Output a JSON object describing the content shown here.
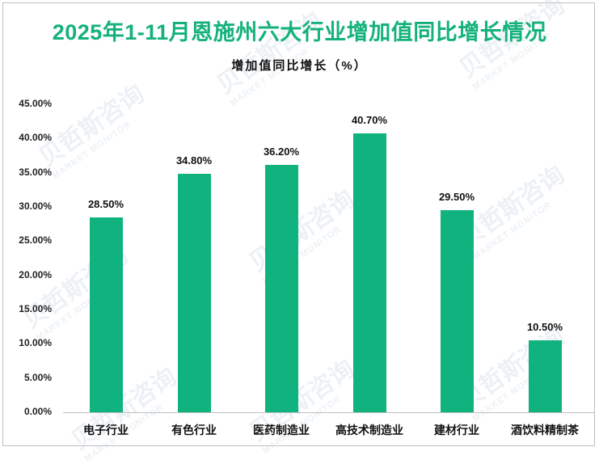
{
  "title": "2025年1-11月恩施州六大行业增加值同比增长情况",
  "subtitle": "增加值同比增长（%）",
  "colors": {
    "title": "#14b27a",
    "bar": "#10b27d",
    "axis": "#bfbfbf"
  },
  "watermark": {
    "text": "贝哲斯咨询",
    "sub": "MARKET MONITOR"
  },
  "y_ticks": [
    "45.00%",
    "40.00%",
    "35.00%",
    "30.00%",
    "25.00%",
    "20.00%",
    "15.00%",
    "10.00%",
    "5.00%",
    "0.00%"
  ],
  "bars": [
    {
      "label": "电子行业",
      "value": 28.5,
      "display": "28.50%"
    },
    {
      "label": "有色行业",
      "value": 34.8,
      "display": "34.80%"
    },
    {
      "label": "医药制造业",
      "value": 36.2,
      "display": "36.20%"
    },
    {
      "label": "高技术制造业",
      "value": 40.7,
      "display": "40.70%"
    },
    {
      "label": "建材行业",
      "value": 29.5,
      "display": "29.50%"
    },
    {
      "label": "酒饮料精制茶",
      "value": 10.5,
      "display": "10.50%"
    }
  ],
  "chart_data": {
    "type": "bar",
    "title": "2025年1-11月恩施州六大行业增加值同比增长情况",
    "subtitle": "增加值同比增长（%）",
    "categories": [
      "电子行业",
      "有色行业",
      "医药制造业",
      "高技术制造业",
      "建材行业",
      "酒饮料精制茶"
    ],
    "values": [
      28.5,
      34.8,
      36.2,
      40.7,
      29.5,
      10.5
    ],
    "data_labels": [
      "28.50%",
      "34.80%",
      "36.20%",
      "40.70%",
      "29.50%",
      "10.50%"
    ],
    "xlabel": "",
    "ylabel": "",
    "ylim": [
      0,
      45
    ],
    "y_tick_step": 5,
    "y_tick_format": "0.00%",
    "grid": false,
    "legend": "none"
  }
}
